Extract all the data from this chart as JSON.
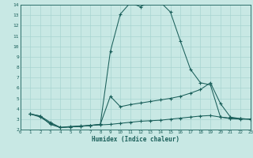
{
  "xlabel": "Humidex (Indice chaleur)",
  "background_color": "#c8e8e4",
  "grid_color": "#a8d4d0",
  "line_color": "#1a5f5a",
  "xlim": [
    0,
    23
  ],
  "ylim": [
    2,
    14
  ],
  "xticks": [
    0,
    1,
    2,
    3,
    4,
    5,
    6,
    7,
    8,
    9,
    10,
    11,
    12,
    13,
    14,
    15,
    16,
    17,
    18,
    19,
    20,
    21,
    22,
    23
  ],
  "yticks": [
    2,
    3,
    4,
    5,
    6,
    7,
    8,
    9,
    10,
    11,
    12,
    13,
    14
  ],
  "series": [
    {
      "x": [
        1,
        2,
        3,
        4,
        5,
        6,
        7,
        8,
        9,
        10,
        11,
        12,
        13,
        14,
        15,
        16,
        17,
        18,
        19,
        20,
        21,
        22,
        23
      ],
      "y": [
        3.5,
        3.3,
        2.5,
        2.2,
        2.3,
        2.35,
        2.4,
        2.45,
        2.5,
        2.6,
        2.7,
        2.8,
        2.85,
        2.9,
        3.0,
        3.1,
        3.2,
        3.3,
        3.35,
        3.2,
        3.1,
        3.05,
        3.0
      ]
    },
    {
      "x": [
        1,
        2,
        3,
        4,
        5,
        6,
        7,
        8,
        9,
        10,
        11,
        12,
        13,
        14,
        15,
        16,
        17,
        18,
        19,
        20,
        21,
        22,
        23
      ],
      "y": [
        3.5,
        3.3,
        2.7,
        2.2,
        2.25,
        2.3,
        2.4,
        2.5,
        5.2,
        4.2,
        4.4,
        4.55,
        4.7,
        4.85,
        5.0,
        5.2,
        5.5,
        5.85,
        6.5,
        4.5,
        3.2,
        3.05,
        3.0
      ]
    },
    {
      "x": [
        1,
        2,
        3,
        4,
        5,
        6,
        7,
        8,
        9,
        10,
        11,
        12,
        13,
        14,
        15,
        16,
        17,
        18,
        19,
        20,
        21,
        22,
        23
      ],
      "y": [
        3.5,
        3.2,
        2.6,
        2.2,
        2.25,
        2.3,
        2.4,
        2.5,
        9.5,
        13.1,
        14.2,
        13.8,
        14.3,
        14.25,
        13.3,
        10.5,
        7.8,
        6.5,
        6.3,
        3.2,
        3.05,
        3.0,
        3.0
      ]
    }
  ]
}
